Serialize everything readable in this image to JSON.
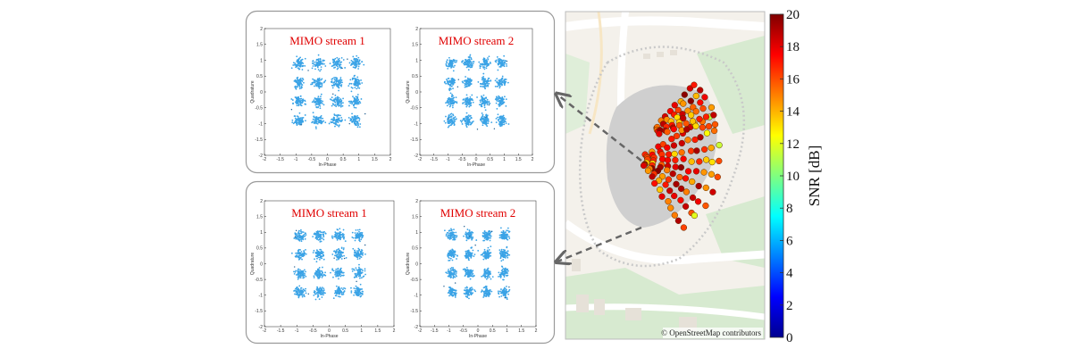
{
  "chart_data": {
    "type": "scatter",
    "constellation_plots": [
      {
        "group": "top",
        "title": "MIMO stream 1",
        "xlabel": "In-Phase",
        "ylabel": "Quadrature",
        "xlim": [
          -2,
          2
        ],
        "ylim": [
          -2,
          2
        ],
        "xticks": [
          "-2",
          "-1.5",
          "-1",
          "-0.5",
          "0",
          "0.5",
          "1",
          "1.5",
          "2"
        ],
        "yticks": [
          "2",
          "1.5",
          "1",
          "0.5",
          "0",
          "-0.5",
          "-1",
          "-1.5",
          "-2"
        ],
        "symbol_levels": [
          -0.9,
          -0.3,
          0.3,
          0.9
        ],
        "noise_std": 0.085,
        "seed": 11
      },
      {
        "group": "top",
        "title": "MIMO stream 2",
        "xlabel": "In-Phase",
        "ylabel": "Quadrature",
        "xlim": [
          -2,
          2
        ],
        "ylim": [
          -2,
          2
        ],
        "xticks": [
          "-2",
          "-1.5",
          "-1",
          "-0.5",
          "0",
          "0.5",
          "1",
          "1.5",
          "2"
        ],
        "yticks": [
          "2",
          "1.5",
          "1",
          "0.5",
          "0",
          "-0.5",
          "-1",
          "-1.5",
          "-2"
        ],
        "symbol_levels": [
          -0.9,
          -0.3,
          0.3,
          0.9
        ],
        "noise_std": 0.085,
        "seed": 23
      },
      {
        "group": "bottom",
        "title": "MIMO stream 1",
        "xlabel": "In-Phase",
        "ylabel": "Quadrature",
        "xlim": [
          -2,
          2
        ],
        "ylim": [
          -2,
          2
        ],
        "xticks": [
          "-2",
          "-1.5",
          "-1",
          "-0.5",
          "0",
          "0.5",
          "1",
          "1.5",
          "2"
        ],
        "yticks": [
          "2",
          "1.5",
          "1",
          "0.5",
          "0",
          "-0.5",
          "-1",
          "-1.5",
          "-2"
        ],
        "symbol_levels": [
          -0.9,
          -0.3,
          0.3,
          0.9
        ],
        "noise_std": 0.08,
        "seed": 37
      },
      {
        "group": "bottom",
        "title": "MIMO stream 2",
        "xlabel": "In-Phase",
        "ylabel": "Quadrature",
        "xlim": [
          -2,
          2
        ],
        "ylim": [
          -2,
          2
        ],
        "xticks": [
          "-2",
          "-1.5",
          "-1",
          "-0.5",
          "0",
          "0.5",
          "1",
          "1.5",
          "2"
        ],
        "yticks": [
          "2",
          "1.5",
          "1",
          "0.5",
          "0",
          "-0.5",
          "-1",
          "-1.5",
          "-2"
        ],
        "symbol_levels": [
          -0.9,
          -0.3,
          0.3,
          0.9
        ],
        "noise_std": 0.08,
        "seed": 51
      }
    ],
    "map": {
      "type": "scatter",
      "attribution": "© OpenStreetMap contributors",
      "snr_db_range": [
        10,
        20
      ],
      "beam_rays": 9,
      "points_per_ray": 11
    },
    "colorbar": {
      "label": "SNR [dB]",
      "min": 0,
      "max": 20,
      "ticks": [
        "0",
        "2",
        "4",
        "6",
        "8",
        "10",
        "12",
        "14",
        "16",
        "18",
        "20"
      ]
    }
  },
  "colors": {
    "marker": "#3aa3e6",
    "title": "#e00000",
    "arrow": "#666666",
    "panel_border": "#9a9a9a",
    "map_bg": "#f4f1eb",
    "map_green": "#d7ead0",
    "map_building": "#cfcfcf"
  }
}
